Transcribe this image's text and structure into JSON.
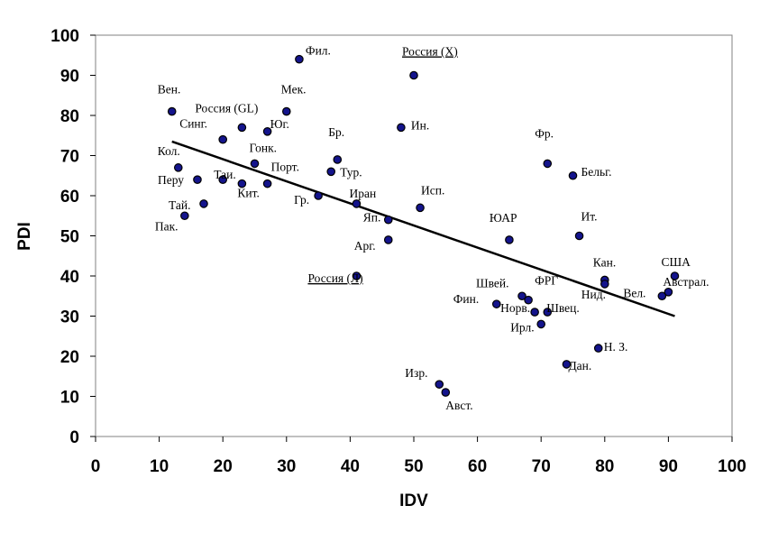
{
  "chart_data": {
    "type": "scatter",
    "xlabel": "IDV",
    "ylabel": "PDI",
    "xlim": [
      0,
      100
    ],
    "ylim": [
      0,
      100
    ],
    "x_ticks": [
      "0",
      "10",
      "20",
      "30",
      "40",
      "50",
      "60",
      "70",
      "80",
      "90",
      "100"
    ],
    "y_ticks": [
      "0",
      "10",
      "20",
      "30",
      "40",
      "50",
      "60",
      "70",
      "80",
      "90",
      "100"
    ],
    "grid": false,
    "legend": "none",
    "colors": {
      "marker_fill": "#14148c",
      "marker_stroke": "#000000",
      "trendline": "#000000"
    },
    "trendline": {
      "x": [
        12,
        91
      ],
      "y": [
        73.5,
        30
      ]
    },
    "points": [
      {
        "label": "Фил.",
        "x": 32,
        "y": 94
      },
      {
        "label": "Россия (X)",
        "x": 50,
        "y": 90,
        "underline": true
      },
      {
        "label": "Вен.",
        "x": 12,
        "y": 81
      },
      {
        "label": "Мек.",
        "x": 30,
        "y": 81
      },
      {
        "label": "Россия (GL)",
        "x": 23,
        "y": 77
      },
      {
        "label": "Юг.",
        "x": 27,
        "y": 76
      },
      {
        "label": "Синг.",
        "x": 20,
        "y": 74
      },
      {
        "label": "Ин.",
        "x": 48,
        "y": 77
      },
      {
        "label": "Бр.",
        "x": 38,
        "y": 69
      },
      {
        "label": "Фр.",
        "x": 71,
        "y": 68
      },
      {
        "label": "Кол.",
        "x": 13,
        "y": 67
      },
      {
        "label": "Гонк.",
        "x": 25,
        "y": 68
      },
      {
        "label": "Тур.",
        "x": 37,
        "y": 66
      },
      {
        "label": "Бельг.",
        "x": 75,
        "y": 65
      },
      {
        "label": "Перу",
        "x": 16,
        "y": 64
      },
      {
        "label": "Таи.",
        "x": 20,
        "y": 64
      },
      {
        "label": "Порт.",
        "x": 27,
        "y": 63
      },
      {
        "label": "Кит.",
        "x": 23,
        "y": 63
      },
      {
        "label": "Гр.",
        "x": 35,
        "y": 60
      },
      {
        "label": "Иран",
        "x": 41,
        "y": 58
      },
      {
        "label": "Тай.",
        "x": 17,
        "y": 58
      },
      {
        "label": "Исп.",
        "x": 51,
        "y": 57
      },
      {
        "label": "Пак.",
        "x": 14,
        "y": 55
      },
      {
        "label": "Яп.",
        "x": 46,
        "y": 54
      },
      {
        "label": "ЮАР",
        "x": 65,
        "y": 49
      },
      {
        "label": "Ит.",
        "x": 76,
        "y": 50
      },
      {
        "label": "Арг.",
        "x": 46,
        "y": 49
      },
      {
        "label": "США",
        "x": 91,
        "y": 40
      },
      {
        "label": "Россия (Л)",
        "x": 41,
        "y": 40,
        "underline": true
      },
      {
        "label": "Кан.",
        "x": 80,
        "y": 39
      },
      {
        "label": "Нид.",
        "x": 80,
        "y": 38
      },
      {
        "label": "Австрал.",
        "x": 90,
        "y": 36
      },
      {
        "label": "Вел.",
        "x": 89,
        "y": 35
      },
      {
        "label": "Швей.",
        "x": 67,
        "y": 35
      },
      {
        "label": "ФРГ",
        "x": 68,
        "y": 34
      },
      {
        "label": "Фин.",
        "x": 63,
        "y": 33
      },
      {
        "label": "Норв.",
        "x": 69,
        "y": 31
      },
      {
        "label": "Швец.",
        "x": 71,
        "y": 31
      },
      {
        "label": "Ирл.",
        "x": 70,
        "y": 28
      },
      {
        "label": "Н. З.",
        "x": 79,
        "y": 22
      },
      {
        "label": "Дан.",
        "x": 74,
        "y": 18
      },
      {
        "label": "Изр.",
        "x": 54,
        "y": 13
      },
      {
        "label": "Авст.",
        "x": 55,
        "y": 11
      }
    ]
  }
}
